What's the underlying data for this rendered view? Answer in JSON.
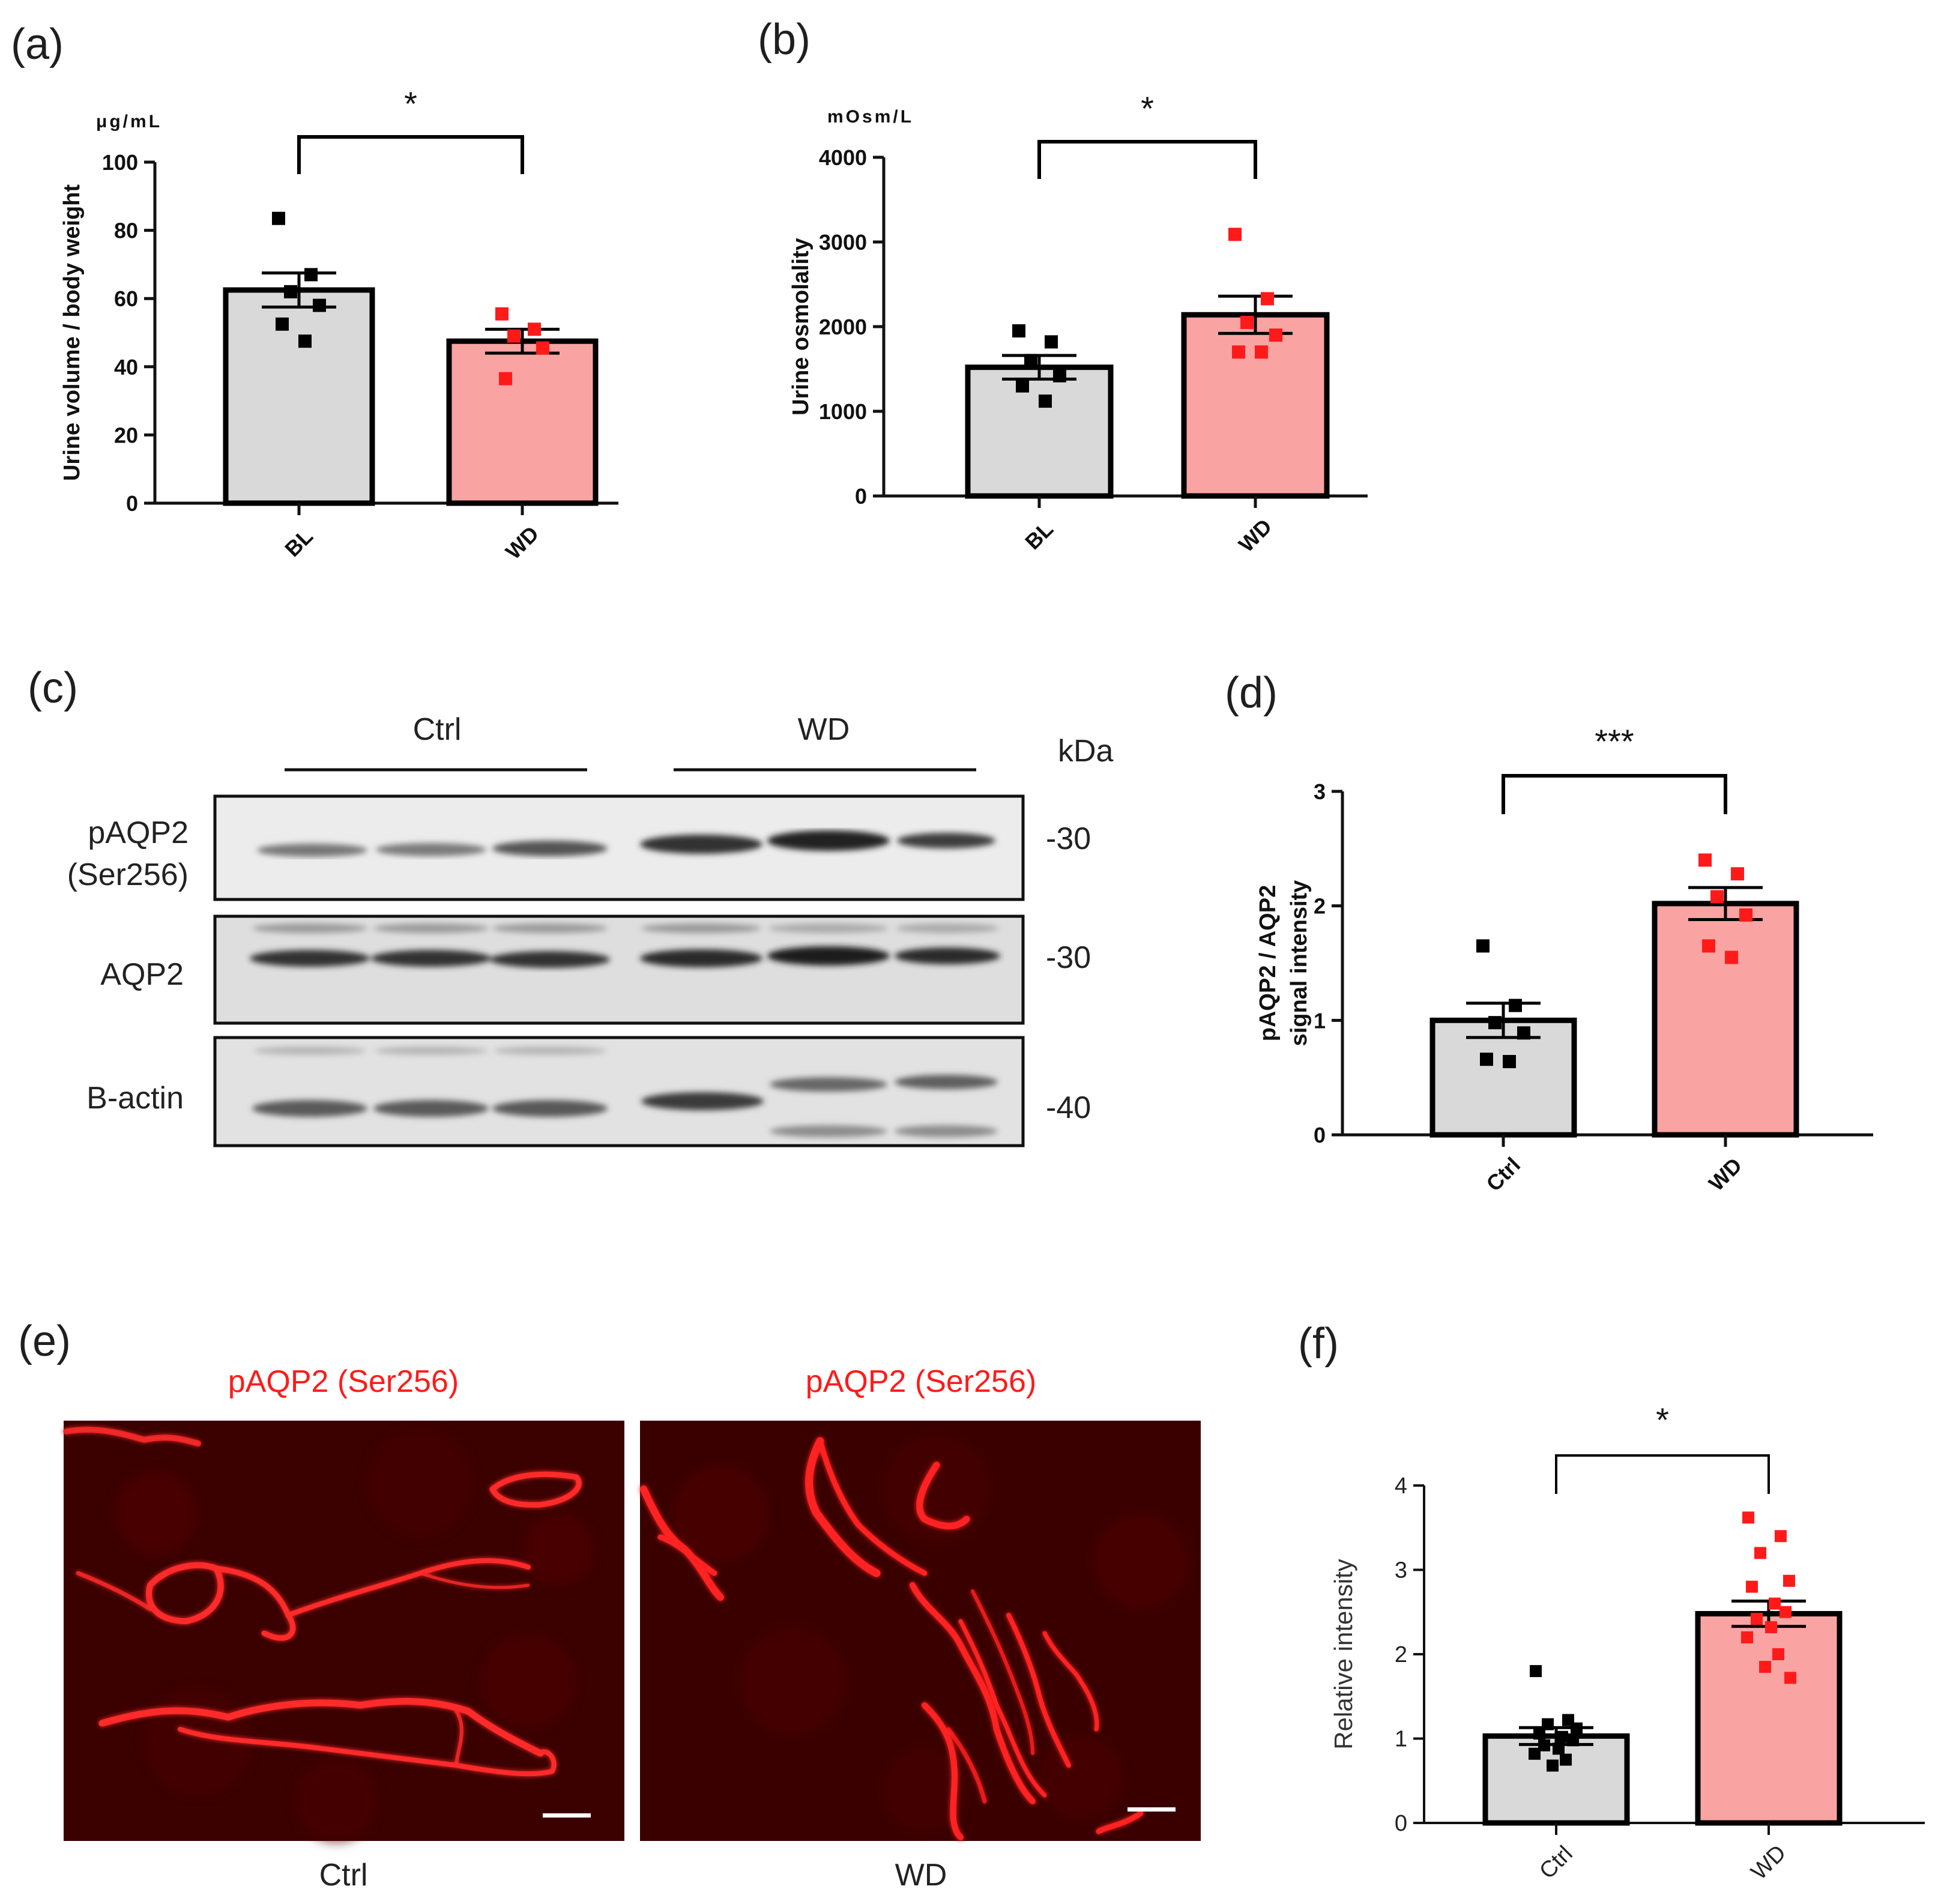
{
  "panels": {
    "a": {
      "letter": "(a)"
    },
    "b": {
      "letter": "(b)"
    },
    "c": {
      "letter": "(c)"
    },
    "d": {
      "letter": "(d)"
    },
    "e": {
      "letter": "(e)"
    },
    "f": {
      "letter": "(f)"
    }
  },
  "colors": {
    "control_bar": "#d9d9d9",
    "treat_bar": "#f9a3a3",
    "control_point": "#000000",
    "treat_point": "#ff1a1a",
    "fluorescence": "#ff2020"
  },
  "chart_data": [
    {
      "id": "a",
      "type": "bar",
      "categories": [
        "BL",
        "WD"
      ],
      "values": [
        62.5,
        47.5
      ],
      "sem": [
        5,
        3.5
      ],
      "points": [
        [
          83.5,
          67,
          62,
          58,
          52.5,
          47.5
        ],
        [
          55.5,
          51,
          49,
          45.5,
          36.5
        ]
      ],
      "ylabel": "Urine volume / body weight",
      "unit": "μg/mL",
      "ylim": [
        0,
        100
      ],
      "yticks": [
        0,
        20,
        40,
        60,
        80,
        100
      ],
      "significance": "*"
    },
    {
      "id": "b",
      "type": "bar",
      "categories": [
        "BL",
        "WD"
      ],
      "values": [
        1520,
        2140
      ],
      "sem": [
        140,
        220
      ],
      "points": [
        [
          1950,
          1820,
          1600,
          1420,
          1300,
          1120
        ],
        [
          3090,
          2330,
          2050,
          1900,
          1700,
          1700
        ]
      ],
      "ylabel": "Urine osmolality",
      "unit": "mOsm/L",
      "ylim": [
        0,
        4000
      ],
      "yticks": [
        0,
        1000,
        2000,
        3000,
        4000
      ],
      "significance": "*"
    },
    {
      "id": "d",
      "type": "bar",
      "categories": [
        "Ctrl",
        "WD"
      ],
      "values": [
        1.0,
        2.02
      ],
      "sem": [
        0.15,
        0.14
      ],
      "points": [
        [
          1.65,
          1.13,
          0.98,
          0.89,
          0.66,
          0.64
        ],
        [
          2.4,
          2.28,
          2.08,
          1.92,
          1.65,
          1.55
        ]
      ],
      "ylabel": [
        "pAQP2 / AQP2",
        "signal intensity"
      ],
      "ylim": [
        0,
        3
      ],
      "yticks": [
        0,
        1,
        2,
        3
      ],
      "significance": "***"
    },
    {
      "id": "f",
      "type": "bar",
      "categories": [
        "Ctrl",
        "WD"
      ],
      "values": [
        1.03,
        2.48
      ],
      "sem": [
        0.1,
        0.15
      ],
      "points": [
        [
          1.8,
          1.22,
          1.17,
          1.12,
          1.06,
          1.02,
          0.98,
          0.92,
          0.88,
          0.82,
          0.75,
          0.68
        ],
        [
          3.62,
          3.4,
          3.2,
          2.87,
          2.8,
          2.6,
          2.5,
          2.42,
          2.32,
          2.2,
          2.0,
          1.85,
          1.72
        ]
      ],
      "ylabel": "Relative intensity",
      "ylim": [
        0,
        4
      ],
      "yticks": [
        0,
        1,
        2,
        3,
        4
      ],
      "significance": "*"
    }
  ],
  "western_blot": {
    "groups": [
      "Ctrl",
      "WD"
    ],
    "kda_header": "kDa",
    "rows": [
      {
        "label_lines": [
          "pAQP2",
          "(Ser256)"
        ],
        "kda": "-30"
      },
      {
        "label_lines": [
          "AQP2"
        ],
        "kda": "-30"
      },
      {
        "label_lines": [
          "B-actin"
        ],
        "kda": "-40"
      }
    ]
  },
  "immunofluorescence": {
    "images": [
      {
        "title": "pAQP2 (Ser256)",
        "caption": "Ctrl"
      },
      {
        "title": "pAQP2 (Ser256)",
        "caption": "WD"
      }
    ]
  }
}
